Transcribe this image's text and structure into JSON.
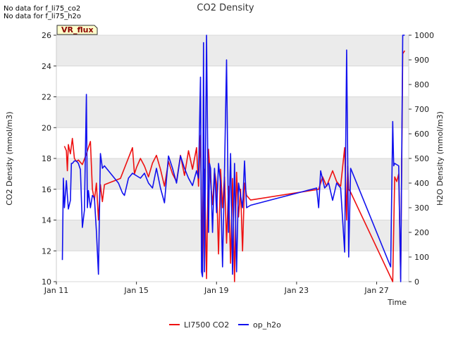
{
  "notices": [
    "No data for f_li75_co2",
    "No data for f_li75_h2o"
  ],
  "badge": "VR_flux",
  "chart_data": {
    "type": "line",
    "title": "CO2 Density",
    "xlabel": "Time",
    "ylabel_left": "CO2 Density (mmol/m3)",
    "ylabel_right": "H2O Density (mmol/m3)",
    "xlim": [
      11,
      28.6
    ],
    "ylim_left": [
      10,
      26
    ],
    "ylim_right": [
      0,
      1000
    ],
    "x_ticks": [
      11,
      15,
      19,
      23,
      27
    ],
    "x_tick_labels": [
      "Jan 11",
      "Jan 15",
      "Jan 19",
      "Jan 23",
      "Jan 27"
    ],
    "yl_ticks": [
      10,
      12,
      14,
      16,
      18,
      20,
      22,
      24,
      26
    ],
    "yr_ticks": [
      0,
      100,
      200,
      300,
      400,
      500,
      600,
      700,
      800,
      900,
      1000
    ],
    "grid": true,
    "legend": "bottom-center",
    "series": [
      {
        "name": "LI7500 CO2",
        "color": "#ee1111",
        "axis": "left",
        "x": [
          11.4,
          11.5,
          11.55,
          11.6,
          11.7,
          11.8,
          11.9,
          12.0,
          12.1,
          12.3,
          12.5,
          12.7,
          12.8,
          12.9,
          13.0,
          13.1,
          13.2,
          13.3,
          13.4,
          14.2,
          14.8,
          14.9,
          15.0,
          15.2,
          15.4,
          15.6,
          15.8,
          16.0,
          16.2,
          16.4,
          16.6,
          16.8,
          17.0,
          17.2,
          17.4,
          17.6,
          17.8,
          18.0,
          18.1,
          18.2,
          18.3,
          18.4,
          18.5,
          18.6,
          18.7,
          18.8,
          18.9,
          19.0,
          19.1,
          19.2,
          19.3,
          19.4,
          19.5,
          19.6,
          19.7,
          19.8,
          19.9,
          20.0,
          20.1,
          20.2,
          20.3,
          20.4,
          20.5,
          20.7,
          24.1,
          24.3,
          24.5,
          24.8,
          25.0,
          25.2,
          25.4,
          25.5,
          25.55,
          25.6,
          25.7,
          27.8,
          27.9,
          28.0,
          28.1,
          28.2,
          28.3,
          28.4
        ],
        "y": [
          18.8,
          18.5,
          17.2,
          18.9,
          18.3,
          19.3,
          18.0,
          17.8,
          17.9,
          17.6,
          18.3,
          19.1,
          16.0,
          15.3,
          16.4,
          14.0,
          16.3,
          15.2,
          16.3,
          16.7,
          18.7,
          17.0,
          17.4,
          18.0,
          17.5,
          16.8,
          17.7,
          18.2,
          17.3,
          16.2,
          17.8,
          17.0,
          16.5,
          18.2,
          16.9,
          18.5,
          17.3,
          18.7,
          16.2,
          19.5,
          10.5,
          17.3,
          10.2,
          18.6,
          16.5,
          15.0,
          17.2,
          16.3,
          11.8,
          17.3,
          14.8,
          16.8,
          12.5,
          16.2,
          11.2,
          16.7,
          10.0,
          17.1,
          14.2,
          16.0,
          12.0,
          16.4,
          15.6,
          15.3,
          16.0,
          16.8,
          16.2,
          17.2,
          16.5,
          16.2,
          18.7,
          14.0,
          17.5,
          16.0,
          15.8,
          10.0,
          16.8,
          16.5,
          17.0,
          10.2,
          24.8,
          25.0
        ]
      },
      {
        "name": "op_h2o",
        "color": "#1111ee",
        "axis": "right",
        "x": [
          11.3,
          11.35,
          11.4,
          11.5,
          11.6,
          11.7,
          11.75,
          11.8,
          11.9,
          12.0,
          12.1,
          12.2,
          12.3,
          12.4,
          12.5,
          12.55,
          12.6,
          12.7,
          12.8,
          12.9,
          12.95,
          13.0,
          13.1,
          13.2,
          13.3,
          13.4,
          14.1,
          14.2,
          14.3,
          14.4,
          14.6,
          14.8,
          15.0,
          15.2,
          15.4,
          15.6,
          15.8,
          16.0,
          16.2,
          16.4,
          16.6,
          16.8,
          17.0,
          17.2,
          17.4,
          17.6,
          17.8,
          18.0,
          18.1,
          18.2,
          18.25,
          18.3,
          18.35,
          18.4,
          18.5,
          18.6,
          18.65,
          18.7,
          18.8,
          18.9,
          19.0,
          19.1,
          19.2,
          19.3,
          19.4,
          19.5,
          19.6,
          19.7,
          19.8,
          19.9,
          20.0,
          20.1,
          20.2,
          20.3,
          20.4,
          20.5,
          20.7,
          24.0,
          24.1,
          24.2,
          24.4,
          24.6,
          24.8,
          25.0,
          25.2,
          25.4,
          25.5,
          25.6,
          25.7,
          27.7,
          27.8,
          27.85,
          27.9,
          28.1,
          28.2,
          28.3,
          28.4
        ],
        "y": [
          88,
          420,
          300,
          410,
          295,
          330,
          480,
          480,
          490,
          490,
          480,
          455,
          220,
          290,
          760,
          300,
          370,
          300,
          350,
          340,
          270,
          205,
          30,
          520,
          460,
          470,
          400,
          380,
          360,
          350,
          420,
          440,
          430,
          420,
          440,
          400,
          380,
          460,
          380,
          320,
          510,
          460,
          400,
          510,
          460,
          420,
          390,
          450,
          420,
          830,
          40,
          20,
          970,
          40,
          1000,
          200,
          480,
          460,
          200,
          460,
          280,
          480,
          400,
          60,
          450,
          900,
          200,
          520,
          30,
          480,
          40,
          400,
          350,
          300,
          490,
          300,
          310,
          380,
          300,
          450,
          380,
          400,
          330,
          400,
          380,
          120,
          940,
          100,
          460,
          60,
          650,
          470,
          480,
          470,
          0,
          1000,
          1000
        ]
      }
    ]
  }
}
